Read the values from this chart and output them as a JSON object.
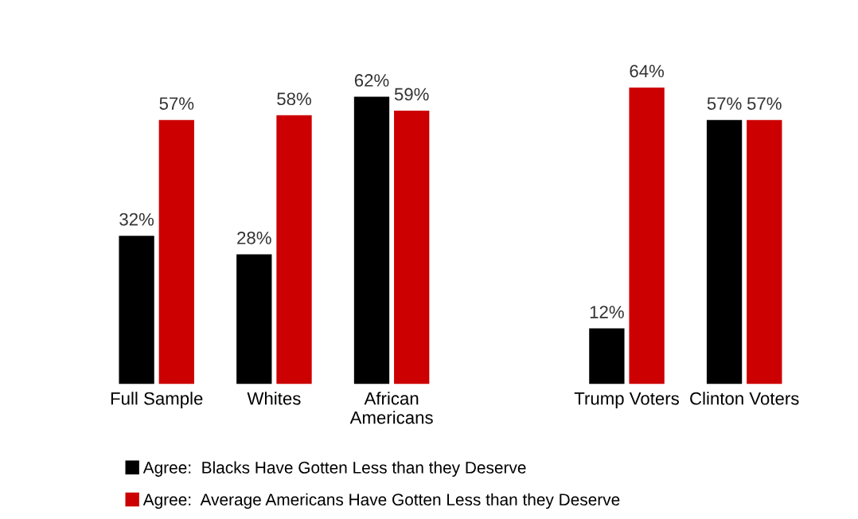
{
  "chart_data": {
    "type": "bar",
    "categories": [
      "Full Sample",
      "Whites",
      "African\nAmericans",
      null,
      "Trump Voters",
      "Clinton Voters"
    ],
    "series": [
      {
        "name": "Agree:  Blacks Have Gotten Less than they Deserve",
        "color": "#000000",
        "values": [
          32,
          28,
          62,
          null,
          12,
          57
        ],
        "value_labels": [
          "32%",
          "28%",
          "62%",
          null,
          "12%",
          "57%"
        ]
      },
      {
        "name": "Agree:  Average Americans Have Gotten Less than they Deserve",
        "color": "#cc0000",
        "values": [
          57,
          58,
          59,
          null,
          64,
          57
        ],
        "value_labels": [
          "57%",
          "58%",
          "59%",
          null,
          "64%",
          "57%"
        ]
      }
    ],
    "legend": "bottom",
    "grid": false
  }
}
